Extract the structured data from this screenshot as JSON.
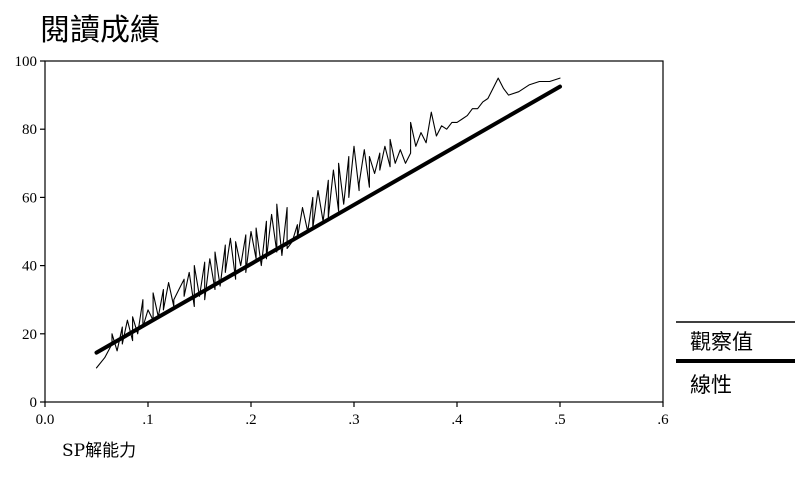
{
  "chart_data": {
    "type": "line",
    "title": "閱讀成績",
    "xlabel": "SP解能力",
    "ylabel": "",
    "xlim": [
      0,
      0.6
    ],
    "ylim": [
      0,
      100
    ],
    "x_ticks": [
      0.0,
      0.1,
      0.2,
      0.3,
      0.4,
      0.5,
      0.6
    ],
    "x_tick_labels": [
      "0.0",
      ".1",
      ".2",
      ".3",
      ".4",
      ".5",
      ".6"
    ],
    "y_ticks": [
      0,
      20,
      40,
      60,
      80,
      100
    ],
    "y_tick_labels": [
      "0",
      "20",
      "40",
      "60",
      "80",
      "100"
    ],
    "grid": false,
    "legend_position": "right",
    "series": [
      {
        "name": "觀察值",
        "style": "thin",
        "x": [
          0.05,
          0.058,
          0.065,
          0.065,
          0.07,
          0.075,
          0.075,
          0.08,
          0.085,
          0.085,
          0.09,
          0.095,
          0.095,
          0.1,
          0.105,
          0.105,
          0.11,
          0.115,
          0.115,
          0.12,
          0.125,
          0.125,
          0.13,
          0.135,
          0.135,
          0.14,
          0.145,
          0.145,
          0.15,
          0.155,
          0.155,
          0.16,
          0.165,
          0.165,
          0.17,
          0.175,
          0.175,
          0.18,
          0.185,
          0.185,
          0.19,
          0.195,
          0.195,
          0.2,
          0.205,
          0.205,
          0.21,
          0.215,
          0.215,
          0.22,
          0.225,
          0.225,
          0.23,
          0.235,
          0.235,
          0.24,
          0.245,
          0.245,
          0.25,
          0.255,
          0.26,
          0.26,
          0.265,
          0.27,
          0.275,
          0.275,
          0.28,
          0.285,
          0.285,
          0.29,
          0.295,
          0.295,
          0.3,
          0.305,
          0.305,
          0.31,
          0.315,
          0.315,
          0.32,
          0.325,
          0.325,
          0.33,
          0.335,
          0.335,
          0.34,
          0.345,
          0.35,
          0.355,
          0.355,
          0.36,
          0.365,
          0.37,
          0.375,
          0.38,
          0.385,
          0.39,
          0.395,
          0.4,
          0.405,
          0.41,
          0.415,
          0.42,
          0.425,
          0.43,
          0.435,
          0.44,
          0.445,
          0.45,
          0.46,
          0.47,
          0.48,
          0.49,
          0.5
        ],
        "y": [
          10,
          13,
          17,
          20,
          15,
          22,
          17,
          24,
          18,
          25,
          20,
          30,
          22,
          27,
          24,
          32,
          25,
          33,
          27,
          35,
          28,
          30,
          33,
          36,
          31,
          38,
          28,
          40,
          31,
          41,
          30,
          42,
          33,
          44,
          34,
          46,
          38,
          48,
          36,
          47,
          40,
          49,
          38,
          50,
          42,
          51,
          40,
          53,
          42,
          55,
          44,
          58,
          43,
          57,
          45,
          47,
          52,
          48,
          57,
          50,
          60,
          51,
          62,
          53,
          65,
          54,
          68,
          56,
          70,
          58,
          72,
          60,
          75,
          62,
          64,
          74,
          63,
          72,
          67,
          73,
          68,
          75,
          69,
          77,
          70,
          74,
          70,
          73,
          82,
          75,
          79,
          76,
          85,
          78,
          81,
          80,
          82,
          82,
          83,
          84,
          86,
          86,
          88,
          89,
          92,
          95,
          92,
          90,
          91,
          93,
          94,
          94,
          95
        ]
      },
      {
        "name": "線性",
        "style": "thick",
        "x": [
          0.05,
          0.5
        ],
        "y": [
          14.5,
          92.5
        ]
      }
    ]
  }
}
